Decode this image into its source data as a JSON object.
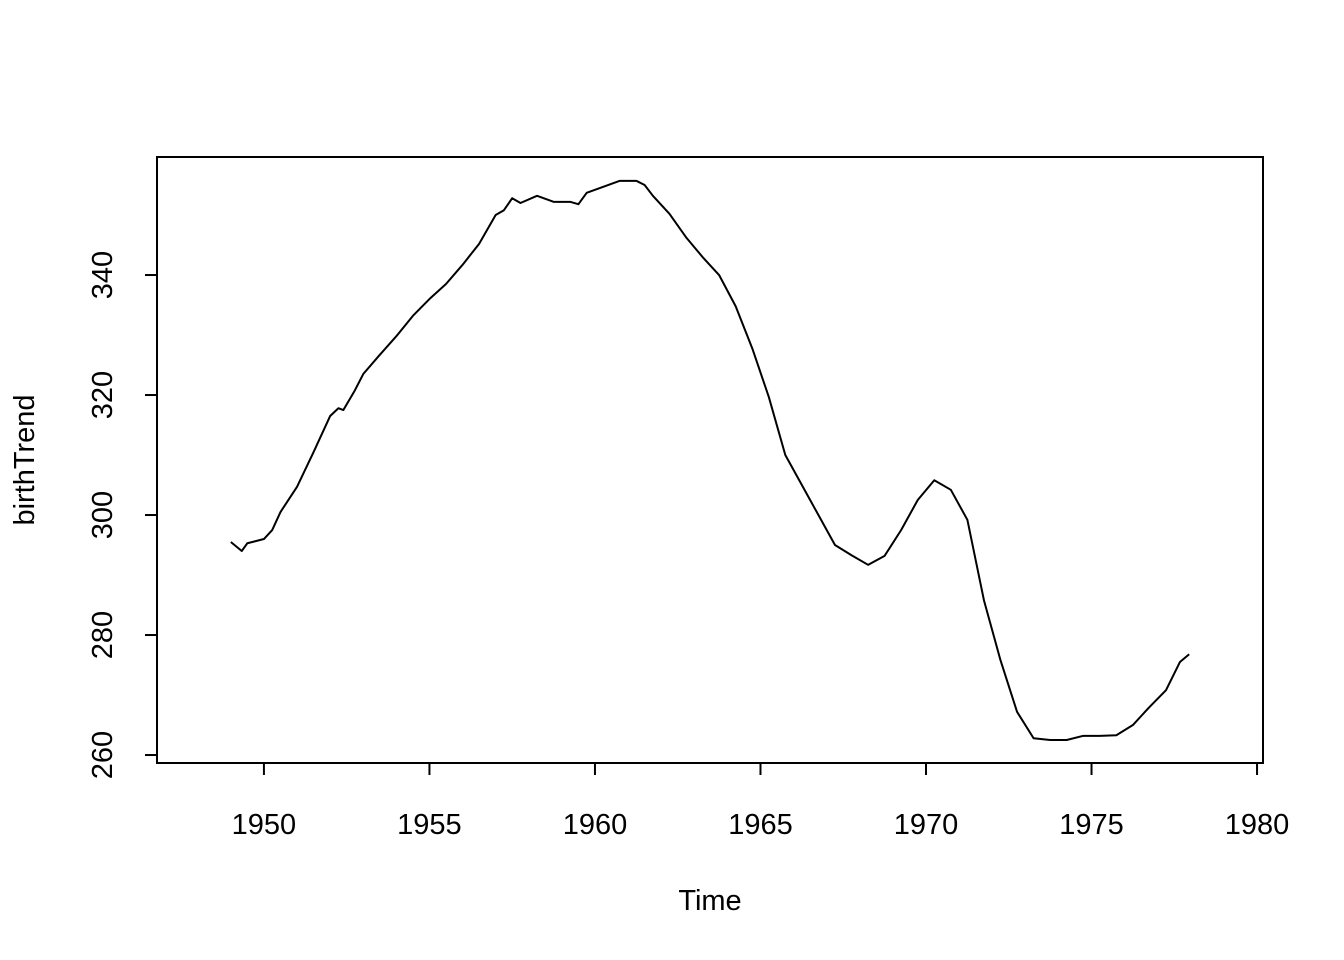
{
  "chart_data": {
    "type": "line",
    "x_label": "Time",
    "y_label": "birthTrend",
    "x": [
      1949.0,
      1949.33,
      1949.5,
      1950.0,
      1950.25,
      1950.5,
      1951.0,
      1951.5,
      1952.0,
      1952.25,
      1952.4,
      1952.75,
      1953.0,
      1953.5,
      1954.0,
      1954.5,
      1955.0,
      1955.5,
      1956.0,
      1956.5,
      1957.0,
      1957.25,
      1957.5,
      1957.75,
      1958.25,
      1958.75,
      1959.25,
      1959.5,
      1959.75,
      1960.25,
      1960.75,
      1961.25,
      1961.5,
      1961.75,
      1962.25,
      1962.75,
      1963.25,
      1963.75,
      1964.25,
      1964.75,
      1965.25,
      1965.75,
      1966.25,
      1966.75,
      1967.25,
      1967.75,
      1968.25,
      1968.75,
      1969.25,
      1969.75,
      1970.25,
      1970.75,
      1971.25,
      1971.75,
      1972.25,
      1972.75,
      1973.25,
      1973.75,
      1974.25,
      1974.75,
      1975.25,
      1975.75,
      1976.25,
      1976.75,
      1977.25,
      1977.67,
      1977.95
    ],
    "series": [
      {
        "color": "#000000",
        "values": [
          295.5,
          294.0,
          295.3,
          296.0,
          297.5,
          300.5,
          304.7,
          310.5,
          316.5,
          317.8,
          317.5,
          320.8,
          323.5,
          326.7,
          329.8,
          333.2,
          336.0,
          338.5,
          341.7,
          345.2,
          350.0,
          350.8,
          352.8,
          352.0,
          353.2,
          352.2,
          352.2,
          351.8,
          353.7,
          354.7,
          355.7,
          355.7,
          355.0,
          353.2,
          350.2,
          346.3,
          343.0,
          340.0,
          334.8,
          327.8,
          319.7,
          310.0,
          305.0,
          300.0,
          295.0,
          293.3,
          291.7,
          293.2,
          297.5,
          302.5,
          305.8,
          304.2,
          299.2,
          285.8,
          275.8,
          267.2,
          262.8,
          262.5,
          262.5,
          263.2,
          263.2,
          263.3,
          265.0,
          268.0,
          270.8,
          275.5,
          276.8
        ]
      }
    ],
    "xlim": [
      1946.77,
      1980.18
    ],
    "ylim": [
      258.67,
      359.67
    ],
    "xticks": [
      1950,
      1955,
      1960,
      1965,
      1970,
      1975,
      1980
    ],
    "yticks": [
      260,
      280,
      300,
      320,
      340
    ]
  }
}
